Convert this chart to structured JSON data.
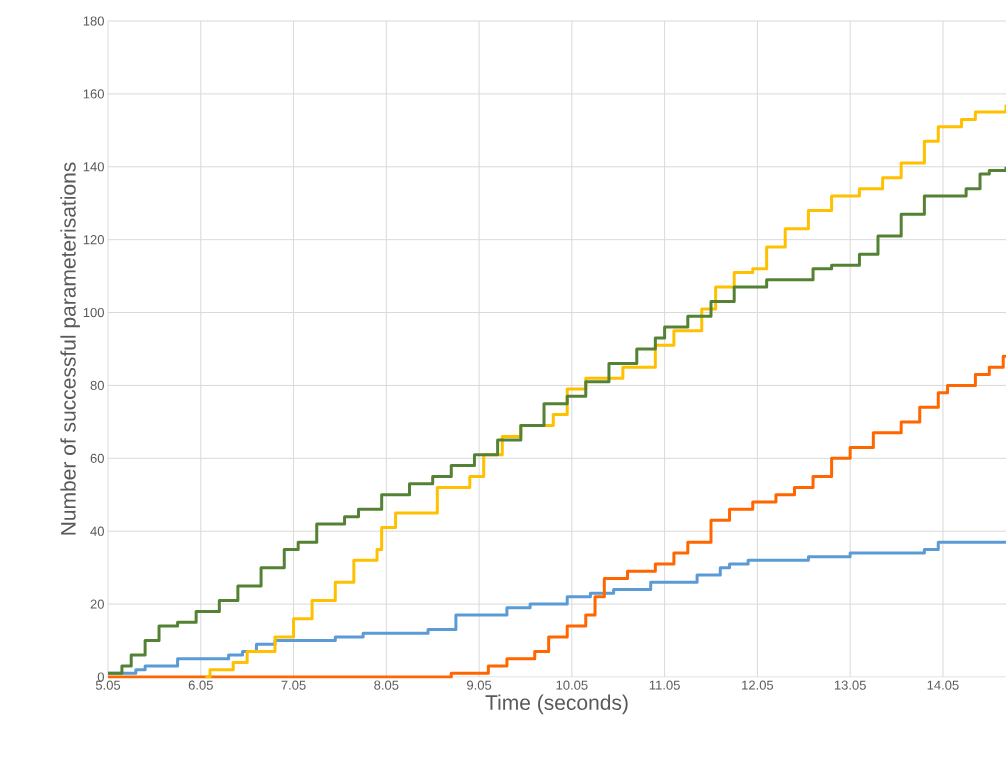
{
  "chart_data": {
    "type": "step",
    "xlabel": "Time (seconds)",
    "ylabel": "Number of successful parameterisations",
    "xlim": [
      5.05,
      14.73
    ],
    "ylim": [
      0,
      180
    ],
    "xticks": [
      5.05,
      6.05,
      7.05,
      8.05,
      9.05,
      10.05,
      11.05,
      12.05,
      13.05,
      14.05
    ],
    "yticks": [
      0,
      20,
      40,
      60,
      80,
      100,
      120,
      140,
      160,
      180
    ],
    "grid": true,
    "series": [
      {
        "color": "#5b9bd5",
        "x": [
          5.05,
          5.35,
          5.45,
          5.8,
          6.35,
          6.5,
          6.65,
          6.85,
          7.5,
          7.8,
          8.5,
          8.8,
          9.35,
          9.6,
          10.0,
          10.25,
          10.5,
          10.9,
          11.4,
          11.65,
          11.75,
          11.95,
          12.6,
          13.05,
          13.85,
          14.0,
          14.73
        ],
        "values": [
          1,
          2,
          3,
          5,
          6,
          7,
          9,
          10,
          11,
          12,
          13,
          17,
          19,
          20,
          22,
          23,
          24,
          26,
          28,
          30,
          31,
          32,
          33,
          34,
          35,
          37,
          37
        ]
      },
      {
        "color": "#ff6600",
        "x": [
          5.05,
          8.75,
          9.15,
          9.35,
          9.65,
          9.8,
          10.0,
          10.2,
          10.3,
          10.4,
          10.65,
          10.95,
          11.15,
          11.3,
          11.55,
          11.75,
          12.0,
          12.25,
          12.45,
          12.65,
          12.85,
          13.05,
          13.3,
          13.6,
          13.8,
          14.0,
          14.1,
          14.4,
          14.55,
          14.7,
          14.73
        ],
        "values": [
          0,
          1,
          3,
          5,
          7,
          11,
          14,
          17,
          22,
          27,
          29,
          31,
          34,
          37,
          43,
          46,
          48,
          50,
          52,
          55,
          60,
          63,
          67,
          70,
          74,
          78,
          80,
          83,
          85,
          88,
          88
        ]
      },
      {
        "color": "#ffc000",
        "x": [
          6.1,
          6.15,
          6.4,
          6.55,
          6.85,
          7.05,
          7.25,
          7.5,
          7.7,
          7.95,
          8.0,
          8.15,
          8.6,
          8.95,
          9.1,
          9.3,
          9.5,
          9.85,
          10.0,
          10.2,
          10.6,
          10.95,
          11.15,
          11.45,
          11.6,
          11.8,
          12.0,
          12.15,
          12.35,
          12.6,
          12.85,
          13.15,
          13.4,
          13.6,
          13.85,
          14.0,
          14.25,
          14.4,
          14.73
        ],
        "values": [
          0,
          2,
          4,
          7,
          11,
          16,
          21,
          26,
          32,
          35,
          41,
          45,
          52,
          55,
          61,
          66,
          69,
          72,
          79,
          82,
          85,
          91,
          95,
          101,
          107,
          111,
          112,
          118,
          123,
          128,
          132,
          134,
          137,
          141,
          147,
          151,
          153,
          155,
          157
        ]
      },
      {
        "color": "#548235",
        "x": [
          5.05,
          5.2,
          5.3,
          5.45,
          5.6,
          5.8,
          6.0,
          6.25,
          6.45,
          6.7,
          6.95,
          7.1,
          7.3,
          7.6,
          7.75,
          8.0,
          8.3,
          8.55,
          8.75,
          9.0,
          9.25,
          9.5,
          9.75,
          10.0,
          10.2,
          10.45,
          10.75,
          10.95,
          11.05,
          11.3,
          11.55,
          11.8,
          12.15,
          12.65,
          12.85,
          13.15,
          13.35,
          13.6,
          13.85,
          14.3,
          14.45,
          14.55,
          14.73
        ],
        "values": [
          1,
          3,
          6,
          10,
          14,
          15,
          18,
          21,
          25,
          30,
          35,
          37,
          42,
          44,
          46,
          50,
          53,
          55,
          58,
          61,
          65,
          69,
          75,
          77,
          81,
          86,
          90,
          93,
          96,
          99,
          103,
          107,
          109,
          112,
          113,
          116,
          121,
          127,
          132,
          134,
          138,
          139,
          140
        ]
      }
    ]
  }
}
